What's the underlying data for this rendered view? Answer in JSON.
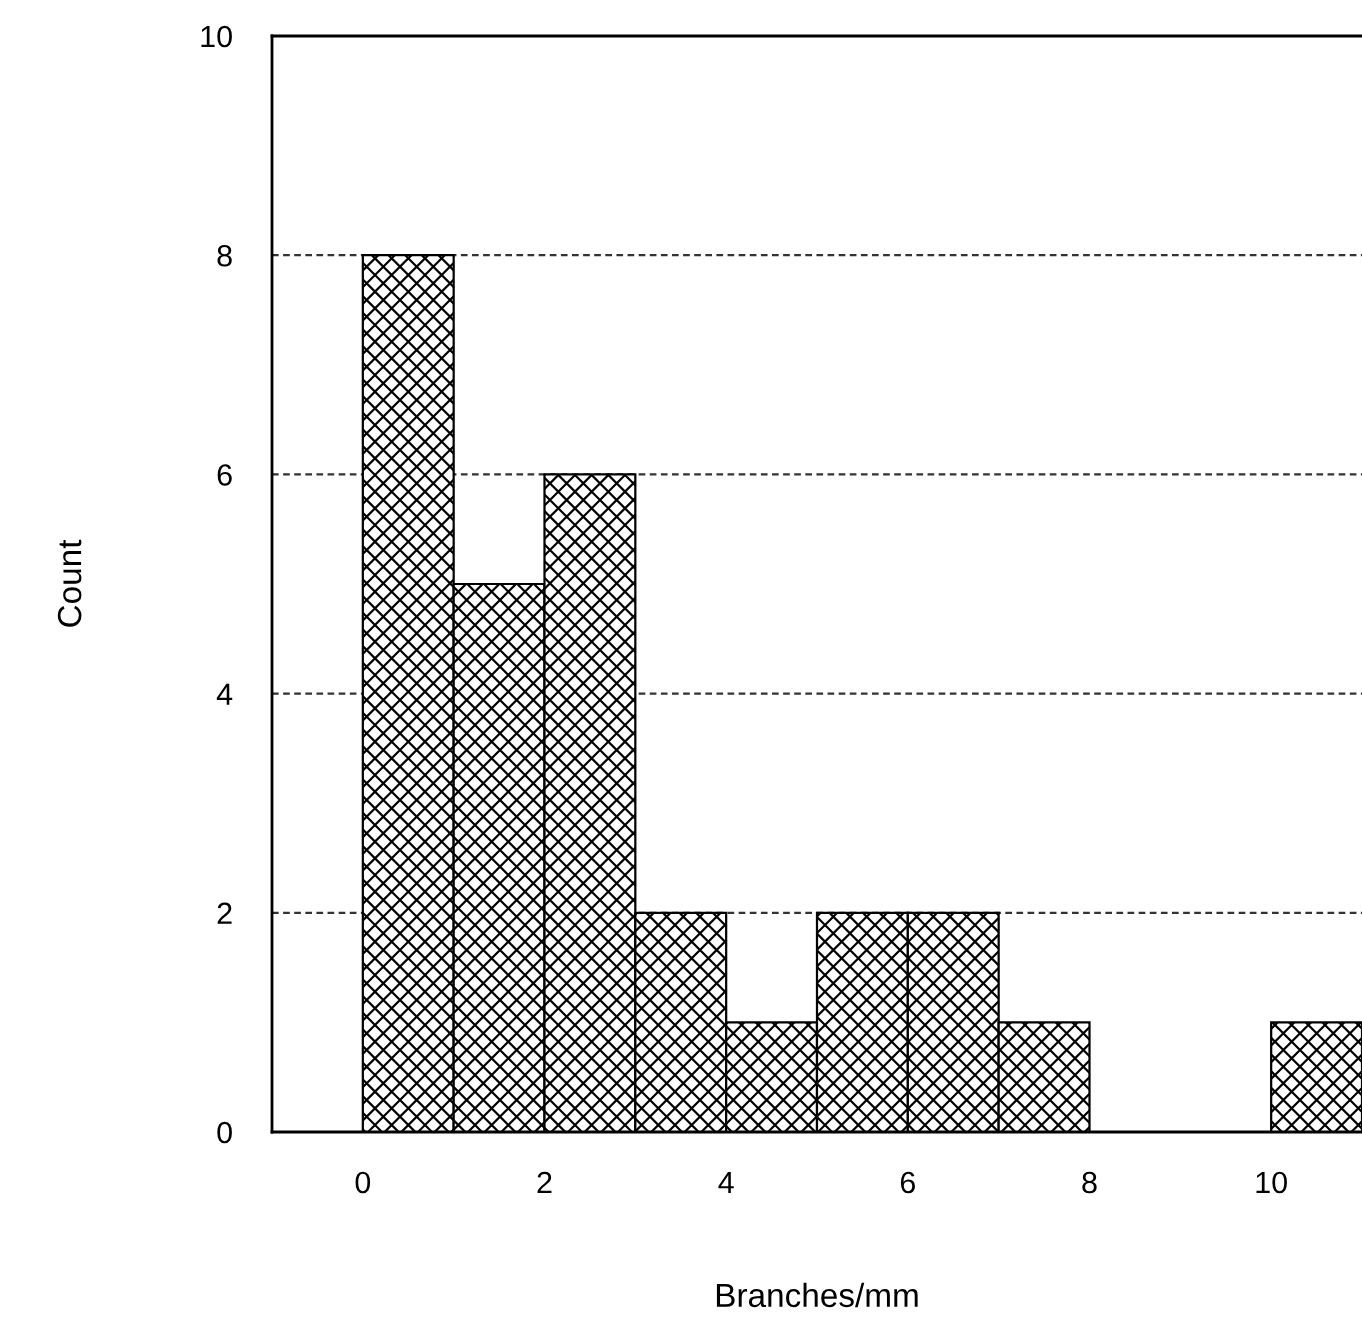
{
  "chart_data": {
    "type": "histogram",
    "xlabel": "Branches/mm",
    "ylabel": "Count",
    "bins": [
      0,
      1,
      2,
      3,
      4,
      5,
      6,
      7,
      8,
      9,
      10,
      11
    ],
    "values": [
      8,
      5,
      6,
      2,
      1,
      2,
      2,
      1,
      0,
      0,
      1
    ],
    "color": "#000000",
    "xlim": [
      -1,
      11
    ],
    "xticks": [
      0,
      2,
      4,
      6,
      8,
      10
    ],
    "ylim": [
      0,
      10
    ],
    "yticks": [
      0,
      2,
      4,
      6,
      8,
      10
    ],
    "grid": "y",
    "legend": false
  }
}
